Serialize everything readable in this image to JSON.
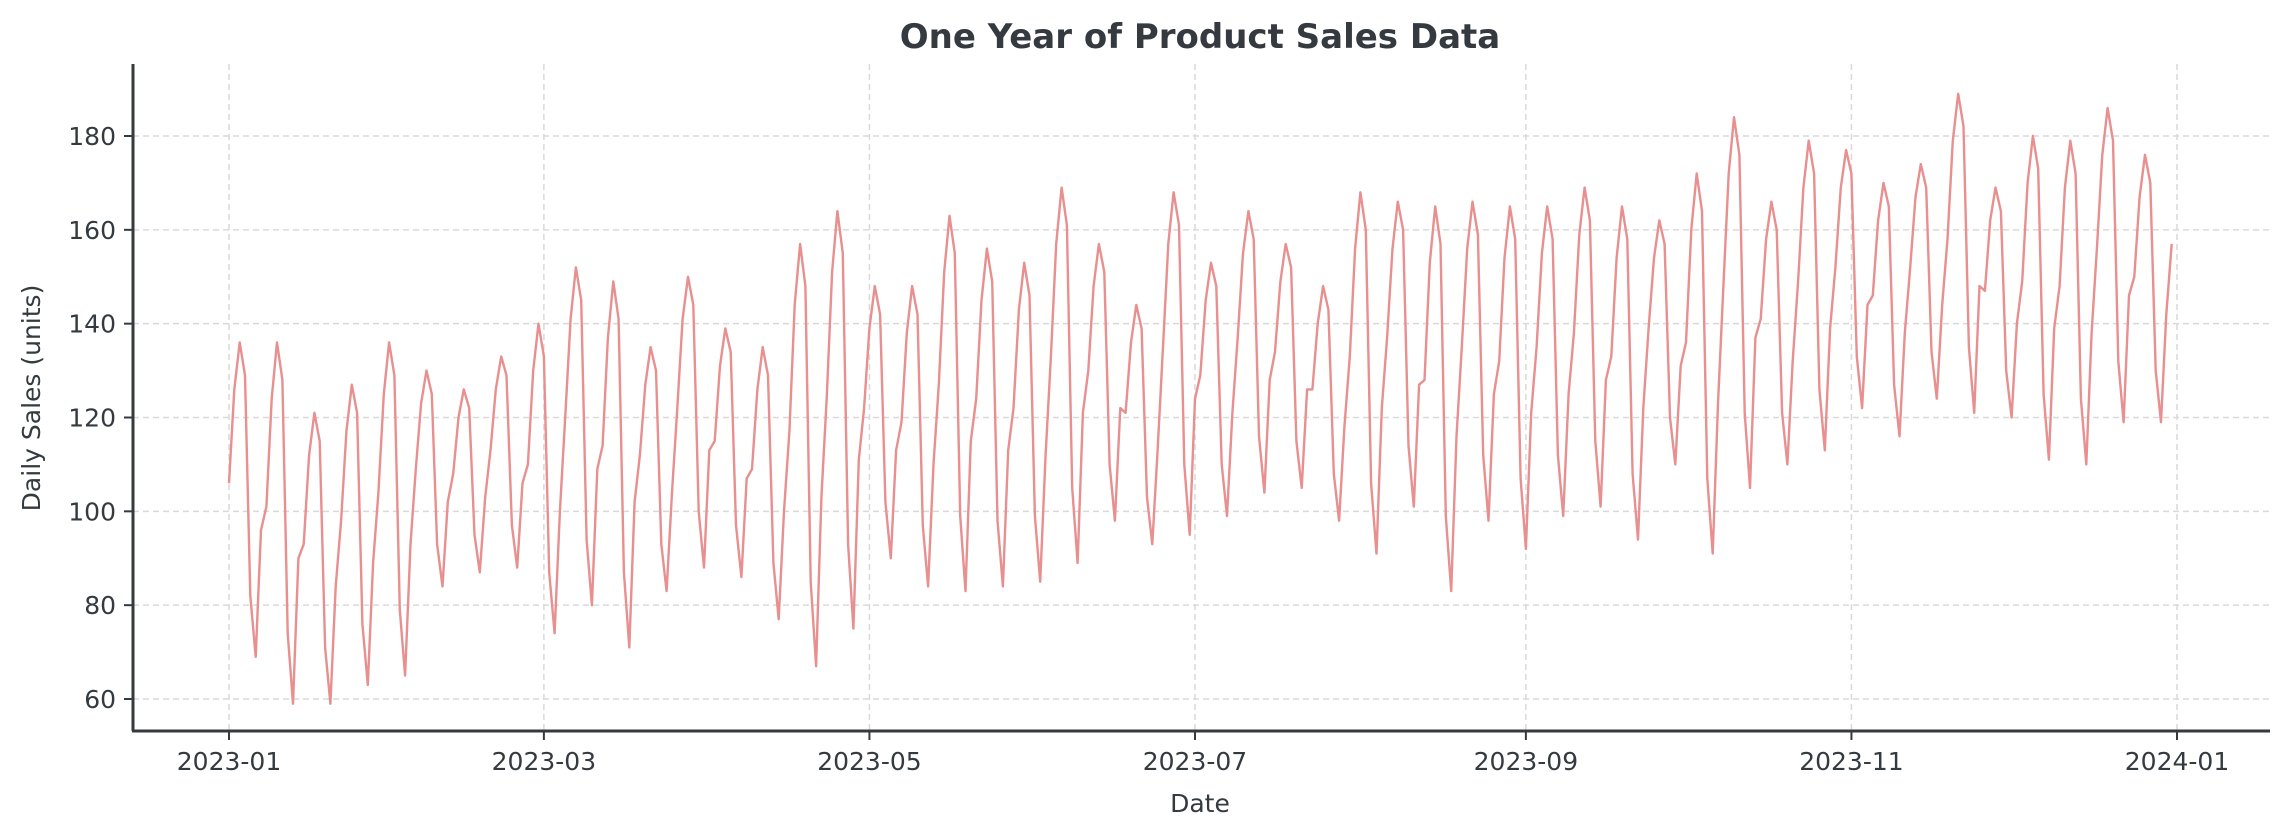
{
  "chart_data": {
    "type": "line",
    "title": "One Year of Product Sales Data",
    "xlabel": "Date",
    "ylabel": "Daily Sales (units)",
    "x_start": "2023-01-01",
    "x_step": "1 day",
    "xlim": [
      "2022-12-14",
      "2024-01-19"
    ],
    "ylim": [
      53,
      196
    ],
    "grid": true,
    "line_color": "#e88f8f",
    "x_ticks": [
      {
        "label": "2023-01",
        "day": 0
      },
      {
        "label": "2023-03",
        "day": 59
      },
      {
        "label": "2023-05",
        "day": 120
      },
      {
        "label": "2023-07",
        "day": 181
      },
      {
        "label": "2023-09",
        "day": 243
      },
      {
        "label": "2023-11",
        "day": 304
      },
      {
        "label": "2024-01",
        "day": 365
      }
    ],
    "y_ticks": [
      60,
      80,
      100,
      120,
      140,
      160,
      180
    ],
    "series": [
      {
        "name": "Daily Sales",
        "values": [
          106,
          126,
          136,
          129,
          82,
          69,
          96,
          101,
          124,
          136,
          128,
          74,
          59,
          90,
          93,
          112,
          121,
          115,
          71,
          59,
          84,
          98,
          117,
          127,
          121,
          76,
          63,
          89,
          104,
          125,
          136,
          129,
          79,
          65,
          93,
          109,
          123,
          130,
          125,
          93,
          84,
          102,
          108,
          120,
          126,
          122,
          95,
          87,
          103,
          113,
          126,
          133,
          129,
          97,
          88,
          106,
          110,
          130,
          140,
          133,
          87,
          74,
          100,
          120,
          141,
          152,
          145,
          94,
          80,
          109,
          114,
          137,
          149,
          141,
          87,
          71,
          102,
          112,
          127,
          135,
          130,
          93,
          83,
          104,
          122,
          141,
          150,
          144,
          100,
          88,
          113,
          115,
          131,
          139,
          134,
          97,
          86,
          107,
          109,
          126,
          135,
          129,
          89,
          77,
          100,
          117,
          144,
          157,
          148,
          85,
          67,
          103,
          124,
          151,
          164,
          155,
          93,
          75,
          111,
          122,
          139,
          148,
          142,
          102,
          90,
          113,
          119,
          138,
          148,
          142,
          97,
          84,
          110,
          127,
          151,
          163,
          155,
          99,
          83,
          115,
          124,
          145,
          156,
          149,
          98,
          84,
          113,
          122,
          143,
          153,
          146,
          99,
          85,
          112,
          133,
          157,
          169,
          161,
          105,
          89,
          121,
          130,
          148,
          157,
          151,
          110,
          98,
          122,
          121,
          136,
          144,
          139,
          103,
          93,
          113,
          135,
          157,
          168,
          161,
          110,
          95,
          124,
          129,
          145,
          153,
          148,
          110,
          99,
          121,
          137,
          155,
          164,
          158,
          116,
          104,
          128,
          134,
          149,
          157,
          152,
          115,
          105,
          126,
          126,
          140,
          148,
          143,
          108,
          98,
          118,
          133,
          156,
          168,
          160,
          106,
          91,
          122,
          137,
          156,
          166,
          160,
          114,
          101,
          127,
          128,
          153,
          165,
          157,
          99,
          83,
          116,
          135,
          156,
          166,
          159,
          112,
          98,
          125,
          132,
          154,
          165,
          158,
          107,
          92,
          121,
          135,
          155,
          165,
          158,
          112,
          99,
          125,
          138,
          159,
          169,
          162,
          115,
          101,
          128,
          133,
          154,
          165,
          158,
          108,
          94,
          122,
          139,
          154,
          162,
          157,
          120,
          110,
          131,
          136,
          160,
          172,
          164,
          107,
          91,
          123,
          148,
          172,
          184,
          176,
          121,
          105,
          137,
          141,
          158,
          166,
          160,
          121,
          110,
          132,
          149,
          169,
          179,
          172,
          126,
          113,
          139,
          152,
          169,
          177,
          172,
          133,
          122,
          144,
          146,
          162,
          170,
          165,
          127,
          116,
          138,
          152,
          167,
          174,
          169,
          134,
          124,
          144,
          158,
          179,
          189,
          182,
          135,
          121,
          148,
          147,
          162,
          169,
          164,
          130,
          120,
          140,
          149,
          170,
          180,
          173,
          125,
          111,
          139,
          148,
          169,
          179,
          172,
          124,
          110,
          138,
          156,
          176,
          186,
          179,
          132,
          119,
          146,
          150,
          167,
          176,
          170,
          130,
          119,
          142,
          157
        ]
      }
    ]
  }
}
